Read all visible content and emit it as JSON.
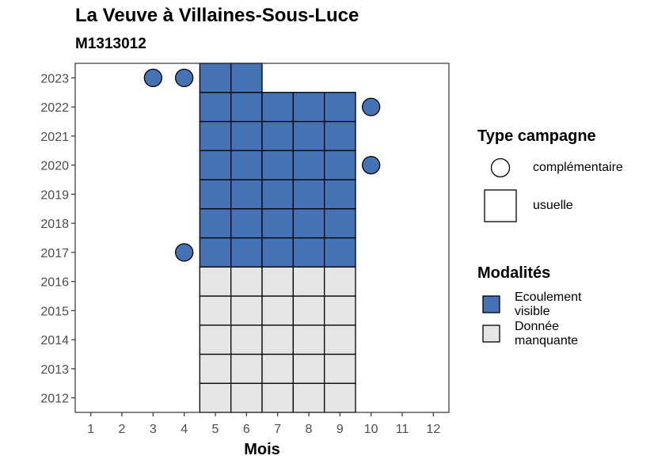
{
  "title": "La Veuve à Villaines-Sous-Luce",
  "subtitle": "M1313012",
  "colors": {
    "ecoulement_visible": "#4472b4",
    "donnee_manquante": "#e5e5e5",
    "stroke": "#000000"
  },
  "chart_data": {
    "type": "heatmap",
    "xlabel": "Mois",
    "ylabel": "",
    "x_ticks": [
      "1",
      "2",
      "3",
      "4",
      "5",
      "6",
      "7",
      "8",
      "9",
      "10",
      "11",
      "12"
    ],
    "y_ticks": [
      "2012",
      "2013",
      "2014",
      "2015",
      "2016",
      "2017",
      "2018",
      "2019",
      "2020",
      "2021",
      "2022",
      "2023"
    ],
    "xlim": [
      0.5,
      12.5
    ],
    "ylim": [
      2011.5,
      2023.5
    ],
    "usuelle_cells": [
      {
        "year": 2012,
        "months": [
          5,
          6,
          7,
          8,
          9
        ],
        "modalite": "Donnée manquante"
      },
      {
        "year": 2013,
        "months": [
          5,
          6,
          7,
          8,
          9
        ],
        "modalite": "Donnée manquante"
      },
      {
        "year": 2014,
        "months": [
          5,
          6,
          7,
          8,
          9
        ],
        "modalite": "Donnée manquante"
      },
      {
        "year": 2015,
        "months": [
          5,
          6,
          7,
          8,
          9
        ],
        "modalite": "Donnée manquante"
      },
      {
        "year": 2016,
        "months": [
          5,
          6,
          7,
          8,
          9
        ],
        "modalite": "Donnée manquante"
      },
      {
        "year": 2017,
        "months": [
          5,
          6,
          7,
          8,
          9
        ],
        "modalite": "Ecoulement visible"
      },
      {
        "year": 2018,
        "months": [
          5,
          6,
          7,
          8,
          9
        ],
        "modalite": "Ecoulement visible"
      },
      {
        "year": 2019,
        "months": [
          5,
          6,
          7,
          8,
          9
        ],
        "modalite": "Ecoulement visible"
      },
      {
        "year": 2020,
        "months": [
          5,
          6,
          7,
          8,
          9
        ],
        "modalite": "Ecoulement visible"
      },
      {
        "year": 2021,
        "months": [
          5,
          6,
          7,
          8,
          9
        ],
        "modalite": "Ecoulement visible"
      },
      {
        "year": 2022,
        "months": [
          5,
          6,
          7,
          8,
          9
        ],
        "modalite": "Ecoulement visible"
      },
      {
        "year": 2023,
        "months": [
          5,
          6
        ],
        "modalite": "Ecoulement visible"
      }
    ],
    "complementaire_points": [
      {
        "year": 2023,
        "month": 3,
        "modalite": "Ecoulement visible"
      },
      {
        "year": 2023,
        "month": 4,
        "modalite": "Ecoulement visible"
      },
      {
        "year": 2022,
        "month": 10,
        "modalite": "Ecoulement visible"
      },
      {
        "year": 2020,
        "month": 10,
        "modalite": "Ecoulement visible"
      },
      {
        "year": 2017,
        "month": 4,
        "modalite": "Ecoulement visible"
      }
    ]
  },
  "legend": {
    "type_title": "Type campagne",
    "type_items": [
      "complémentaire",
      "usuelle"
    ],
    "modalites_title": "Modalités",
    "modalites_items": [
      "Ecoulement visible",
      "Donnée manquante"
    ]
  }
}
